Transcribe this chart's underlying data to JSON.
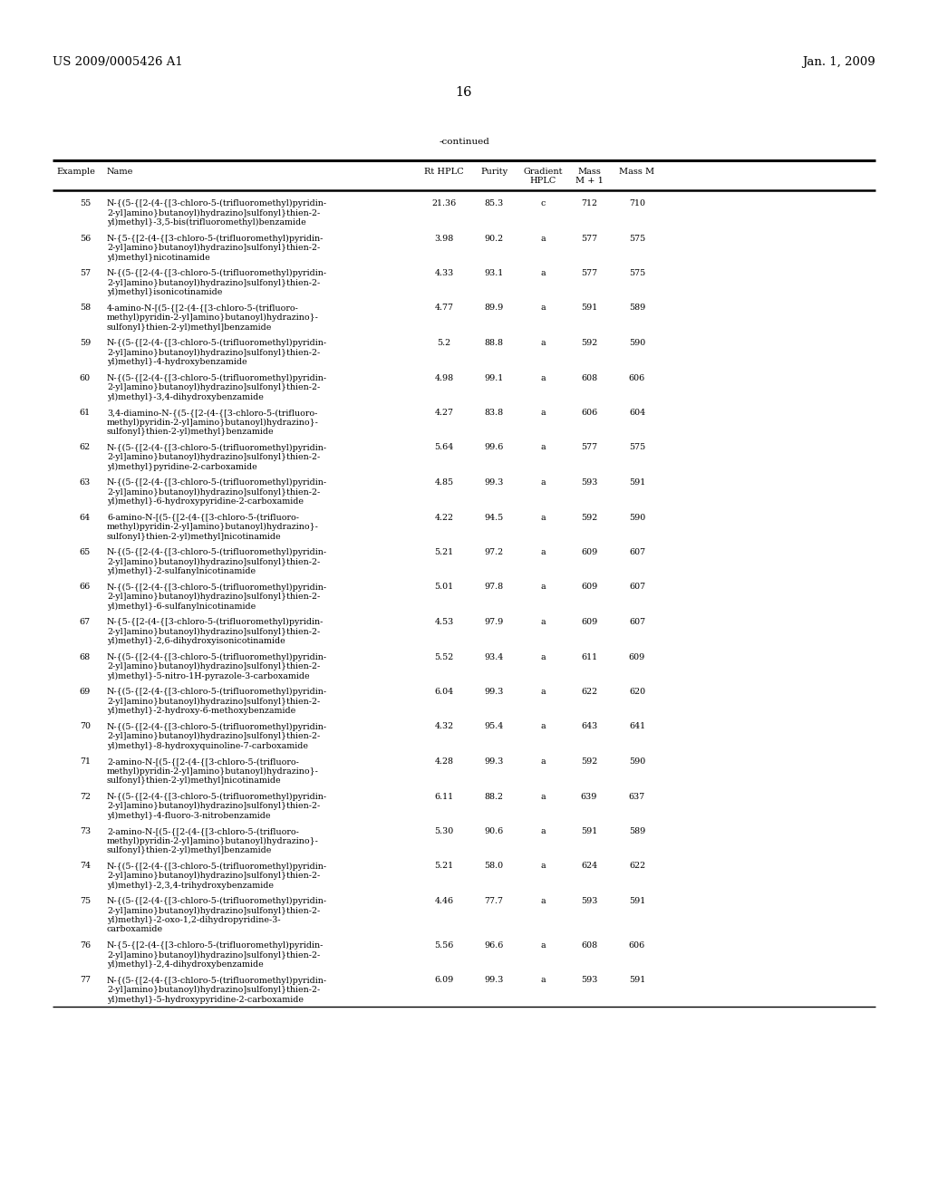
{
  "header_left": "US 2009/0005426 A1",
  "header_right": "Jan. 1, 2009",
  "page_number": "16",
  "continued_label": "-continued",
  "rows": [
    {
      "ex": "55",
      "name": "N-{(5-{[2-(4-{[3-chloro-5-(trifluoromethyl)pyridin-\n2-yl]amino}butanoyl)hydrazino]sulfonyl}thien-2-\nyl)methyl}-3,5-bis(trifluoromethyl)benzamide",
      "rt": "21.36",
      "purity": "85.3",
      "grad": "c",
      "mass1": "712",
      "massm": "710"
    },
    {
      "ex": "56",
      "name": "N-{5-{[2-(4-{[3-chloro-5-(trifluoromethyl)pyridin-\n2-yl]amino}butanoyl)hydrazino]sulfonyl}thien-2-\nyl)methyl}nicotinamide",
      "rt": "3.98",
      "purity": "90.2",
      "grad": "a",
      "mass1": "577",
      "massm": "575"
    },
    {
      "ex": "57",
      "name": "N-{(5-{[2-(4-{[3-chloro-5-(trifluoromethyl)pyridin-\n2-yl]amino}butanoyl)hydrazino]sulfonyl}thien-2-\nyl)methyl}isonicotinamide",
      "rt": "4.33",
      "purity": "93.1",
      "grad": "a",
      "mass1": "577",
      "massm": "575"
    },
    {
      "ex": "58",
      "name": "4-amino-N-[(5-{[2-(4-{[3-chloro-5-(trifluoro-\nmethyl)pyridin-2-yl]amino}butanoyl)hydrazino}-\nsulfonyl}thien-2-yl)methyl]benzamide",
      "rt": "4.77",
      "purity": "89.9",
      "grad": "a",
      "mass1": "591",
      "massm": "589"
    },
    {
      "ex": "59",
      "name": "N-{(5-{[2-(4-{[3-chloro-5-(trifluoromethyl)pyridin-\n2-yl]amino}butanoyl)hydrazino]sulfonyl}thien-2-\nyl)methyl}-4-hydroxybenzamide",
      "rt": "5.2",
      "purity": "88.8",
      "grad": "a",
      "mass1": "592",
      "massm": "590"
    },
    {
      "ex": "60",
      "name": "N-{(5-{[2-(4-{[3-chloro-5-(trifluoromethyl)pyridin-\n2-yl]amino}butanoyl)hydrazino]sulfonyl}thien-2-\nyl)methyl}-3,4-dihydroxybenzamide",
      "rt": "4.98",
      "purity": "99.1",
      "grad": "a",
      "mass1": "608",
      "massm": "606"
    },
    {
      "ex": "61",
      "name": "3,4-diamino-N-{(5-{[2-(4-{[3-chloro-5-(trifluoro-\nmethyl)pyridin-2-yl]amino}butanoyl)hydrazino}-\nsulfonyl}thien-2-yl)methyl}benzamide",
      "rt": "4.27",
      "purity": "83.8",
      "grad": "a",
      "mass1": "606",
      "massm": "604"
    },
    {
      "ex": "62",
      "name": "N-{(5-{[2-(4-{[3-chloro-5-(trifluoromethyl)pyridin-\n2-yl]amino}butanoyl)hydrazino]sulfonyl}thien-2-\nyl)methyl}pyridine-2-carboxamide",
      "rt": "5.64",
      "purity": "99.6",
      "grad": "a",
      "mass1": "577",
      "massm": "575"
    },
    {
      "ex": "63",
      "name": "N-{(5-{[2-(4-{[3-chloro-5-(trifluoromethyl)pyridin-\n2-yl]amino}butanoyl)hydrazino]sulfonyl}thien-2-\nyl)methyl}-6-hydroxypyridine-2-carboxamide",
      "rt": "4.85",
      "purity": "99.3",
      "grad": "a",
      "mass1": "593",
      "massm": "591"
    },
    {
      "ex": "64",
      "name": "6-amino-N-[(5-{[2-(4-{[3-chloro-5-(trifluoro-\nmethyl)pyridin-2-yl]amino}butanoyl)hydrazino}-\nsulfonyl}thien-2-yl)methyl]nicotinamide",
      "rt": "4.22",
      "purity": "94.5",
      "grad": "a",
      "mass1": "592",
      "massm": "590"
    },
    {
      "ex": "65",
      "name": "N-{(5-{[2-(4-{[3-chloro-5-(trifluoromethyl)pyridin-\n2-yl]amino}butanoyl)hydrazino]sulfonyl}thien-2-\nyl)methyl}-2-sulfanylnicotinamide",
      "rt": "5.21",
      "purity": "97.2",
      "grad": "a",
      "mass1": "609",
      "massm": "607"
    },
    {
      "ex": "66",
      "name": "N-{(5-{[2-(4-{[3-chloro-5-(trifluoromethyl)pyridin-\n2-yl]amino}butanoyl)hydrazino]sulfonyl}thien-2-\nyl)methyl}-6-sulfanylnicotinamide",
      "rt": "5.01",
      "purity": "97.8",
      "grad": "a",
      "mass1": "609",
      "massm": "607"
    },
    {
      "ex": "67",
      "name": "N-{5-{[2-(4-{[3-chloro-5-(trifluoromethyl)pyridin-\n2-yl]amino}butanoyl)hydrazino]sulfonyl}thien-2-\nyl)methyl}-2,6-dihydroxyisonicotinamide",
      "rt": "4.53",
      "purity": "97.9",
      "grad": "a",
      "mass1": "609",
      "massm": "607"
    },
    {
      "ex": "68",
      "name": "N-{(5-{[2-(4-{[3-chloro-5-(trifluoromethyl)pyridin-\n2-yl]amino}butanoyl)hydrazino]sulfonyl}thien-2-\nyl)methyl}-5-nitro-1H-pyrazole-3-carboxamide",
      "rt": "5.52",
      "purity": "93.4",
      "grad": "a",
      "mass1": "611",
      "massm": "609"
    },
    {
      "ex": "69",
      "name": "N-{(5-{[2-(4-{[3-chloro-5-(trifluoromethyl)pyridin-\n2-yl]amino}butanoyl)hydrazino]sulfonyl}thien-2-\nyl)methyl}-2-hydroxy-6-methoxybenzamide",
      "rt": "6.04",
      "purity": "99.3",
      "grad": "a",
      "mass1": "622",
      "massm": "620"
    },
    {
      "ex": "70",
      "name": "N-{(5-{[2-(4-{[3-chloro-5-(trifluoromethyl)pyridin-\n2-yl]amino}butanoyl)hydrazino]sulfonyl}thien-2-\nyl)methyl}-8-hydroxyquinoline-7-carboxamide",
      "rt": "4.32",
      "purity": "95.4",
      "grad": "a",
      "mass1": "643",
      "massm": "641"
    },
    {
      "ex": "71",
      "name": "2-amino-N-[(5-{[2-(4-{[3-chloro-5-(trifluoro-\nmethyl)pyridin-2-yl]amino}butanoyl)hydrazino}-\nsulfonyl}thien-2-yl)methyl]nicotinamide",
      "rt": "4.28",
      "purity": "99.3",
      "grad": "a",
      "mass1": "592",
      "massm": "590"
    },
    {
      "ex": "72",
      "name": "N-{(5-{[2-(4-{[3-chloro-5-(trifluoromethyl)pyridin-\n2-yl]amino}butanoyl)hydrazino]sulfonyl}thien-2-\nyl)methyl}-4-fluoro-3-nitrobenzamide",
      "rt": "6.11",
      "purity": "88.2",
      "grad": "a",
      "mass1": "639",
      "massm": "637"
    },
    {
      "ex": "73",
      "name": "2-amino-N-[(5-{[2-(4-{[3-chloro-5-(trifluoro-\nmethyl)pyridin-2-yl]amino}butanoyl)hydrazino}-\nsulfonyl}thien-2-yl)methyl]benzamide",
      "rt": "5.30",
      "purity": "90.6",
      "grad": "a",
      "mass1": "591",
      "massm": "589"
    },
    {
      "ex": "74",
      "name": "N-{(5-{[2-(4-{[3-chloro-5-(trifluoromethyl)pyridin-\n2-yl]amino}butanoyl)hydrazino]sulfonyl}thien-2-\nyl)methyl}-2,3,4-trihydroxybenzamide",
      "rt": "5.21",
      "purity": "58.0",
      "grad": "a",
      "mass1": "624",
      "massm": "622"
    },
    {
      "ex": "75",
      "name": "N-{(5-{[2-(4-{[3-chloro-5-(trifluoromethyl)pyridin-\n2-yl]amino}butanoyl)hydrazino]sulfonyl}thien-2-\nyl)methyl}-2-oxo-1,2-dihydropyridine-3-\ncarboxamide",
      "rt": "4.46",
      "purity": "77.7",
      "grad": "a",
      "mass1": "593",
      "massm": "591"
    },
    {
      "ex": "76",
      "name": "N-{5-{[2-(4-{[3-chloro-5-(trifluoromethyl)pyridin-\n2-yl]amino}butanoyl)hydrazino]sulfonyl}thien-2-\nyl)methyl}-2,4-dihydroxybenzamide",
      "rt": "5.56",
      "purity": "96.6",
      "grad": "a",
      "mass1": "608",
      "massm": "606"
    },
    {
      "ex": "77",
      "name": "N-{(5-{[2-(4-{[3-chloro-5-(trifluoromethyl)pyridin-\n2-yl]amino}butanoyl)hydrazino]sulfonyl}thien-2-\nyl)methyl}-5-hydroxypyridine-2-carboxamide",
      "rt": "6.09",
      "purity": "99.3",
      "grad": "a",
      "mass1": "593",
      "massm": "591"
    }
  ],
  "bg_color": "#ffffff",
  "text_color": "#000000",
  "font_size": 7.0,
  "small_font_size": 6.8,
  "header_font_size": 9.5
}
